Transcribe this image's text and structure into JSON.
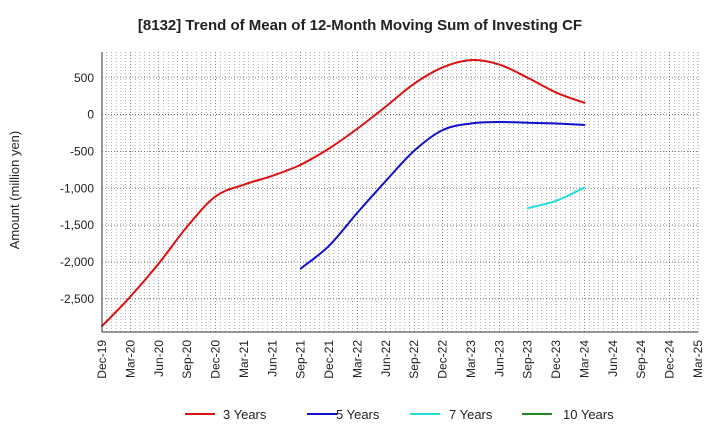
{
  "chart_data": {
    "type": "line",
    "title": "[8132]  Trend of Mean of 12-Month Moving Sum of Investing CF",
    "xlabel": "",
    "ylabel": "Amount (million yen)",
    "ylim": [
      -2950,
      850
    ],
    "grid": true,
    "legend_position": "bottom",
    "x_ticks": [
      "Dec-19",
      "Mar-20",
      "Jun-20",
      "Sep-20",
      "Dec-20",
      "Mar-21",
      "Jun-21",
      "Sep-21",
      "Dec-21",
      "Mar-22",
      "Jun-22",
      "Sep-22",
      "Dec-22",
      "Mar-23",
      "Jun-23",
      "Sep-23",
      "Dec-23",
      "Mar-24",
      "Jun-24",
      "Sep-24",
      "Dec-24",
      "Mar-25"
    ],
    "y_ticks": [
      500,
      0,
      -500,
      -1000,
      -1500,
      -2000,
      -2500
    ],
    "y_tick_labels": [
      "500",
      "0",
      "-500",
      "-1,000",
      "-1,500",
      "-2,000",
      "-2,500"
    ],
    "series": [
      {
        "name": "3 Years",
        "color": "#dd1111",
        "x": [
          "Dec-19",
          "Mar-20",
          "Jun-20",
          "Sep-20",
          "Dec-20",
          "Mar-21",
          "Jun-21",
          "Sep-21",
          "Dec-21",
          "Mar-22",
          "Jun-22",
          "Sep-22",
          "Dec-22",
          "Mar-23",
          "Jun-23",
          "Sep-23",
          "Dec-23",
          "Mar-24"
        ],
        "values": [
          -2870,
          -2470,
          -2020,
          -1520,
          -1110,
          -950,
          -830,
          -680,
          -460,
          -190,
          110,
          420,
          640,
          740,
          680,
          500,
          300,
          160
        ]
      },
      {
        "name": "5 Years",
        "color": "#1111cc",
        "x": [
          "Sep-21",
          "Dec-21",
          "Mar-22",
          "Jun-22",
          "Sep-22",
          "Dec-22",
          "Mar-23",
          "Jun-23",
          "Sep-23",
          "Dec-23",
          "Mar-24"
        ],
        "values": [
          -2090,
          -1780,
          -1330,
          -900,
          -490,
          -210,
          -120,
          -100,
          -110,
          -120,
          -140
        ]
      },
      {
        "name": "7 Years",
        "color": "#22dddd",
        "x": [
          "Sep-23",
          "Dec-23",
          "Mar-24"
        ],
        "values": [
          -1270,
          -1170,
          -990
        ]
      },
      {
        "name": "10 Years",
        "color": "#228822",
        "x": [],
        "values": []
      }
    ]
  }
}
